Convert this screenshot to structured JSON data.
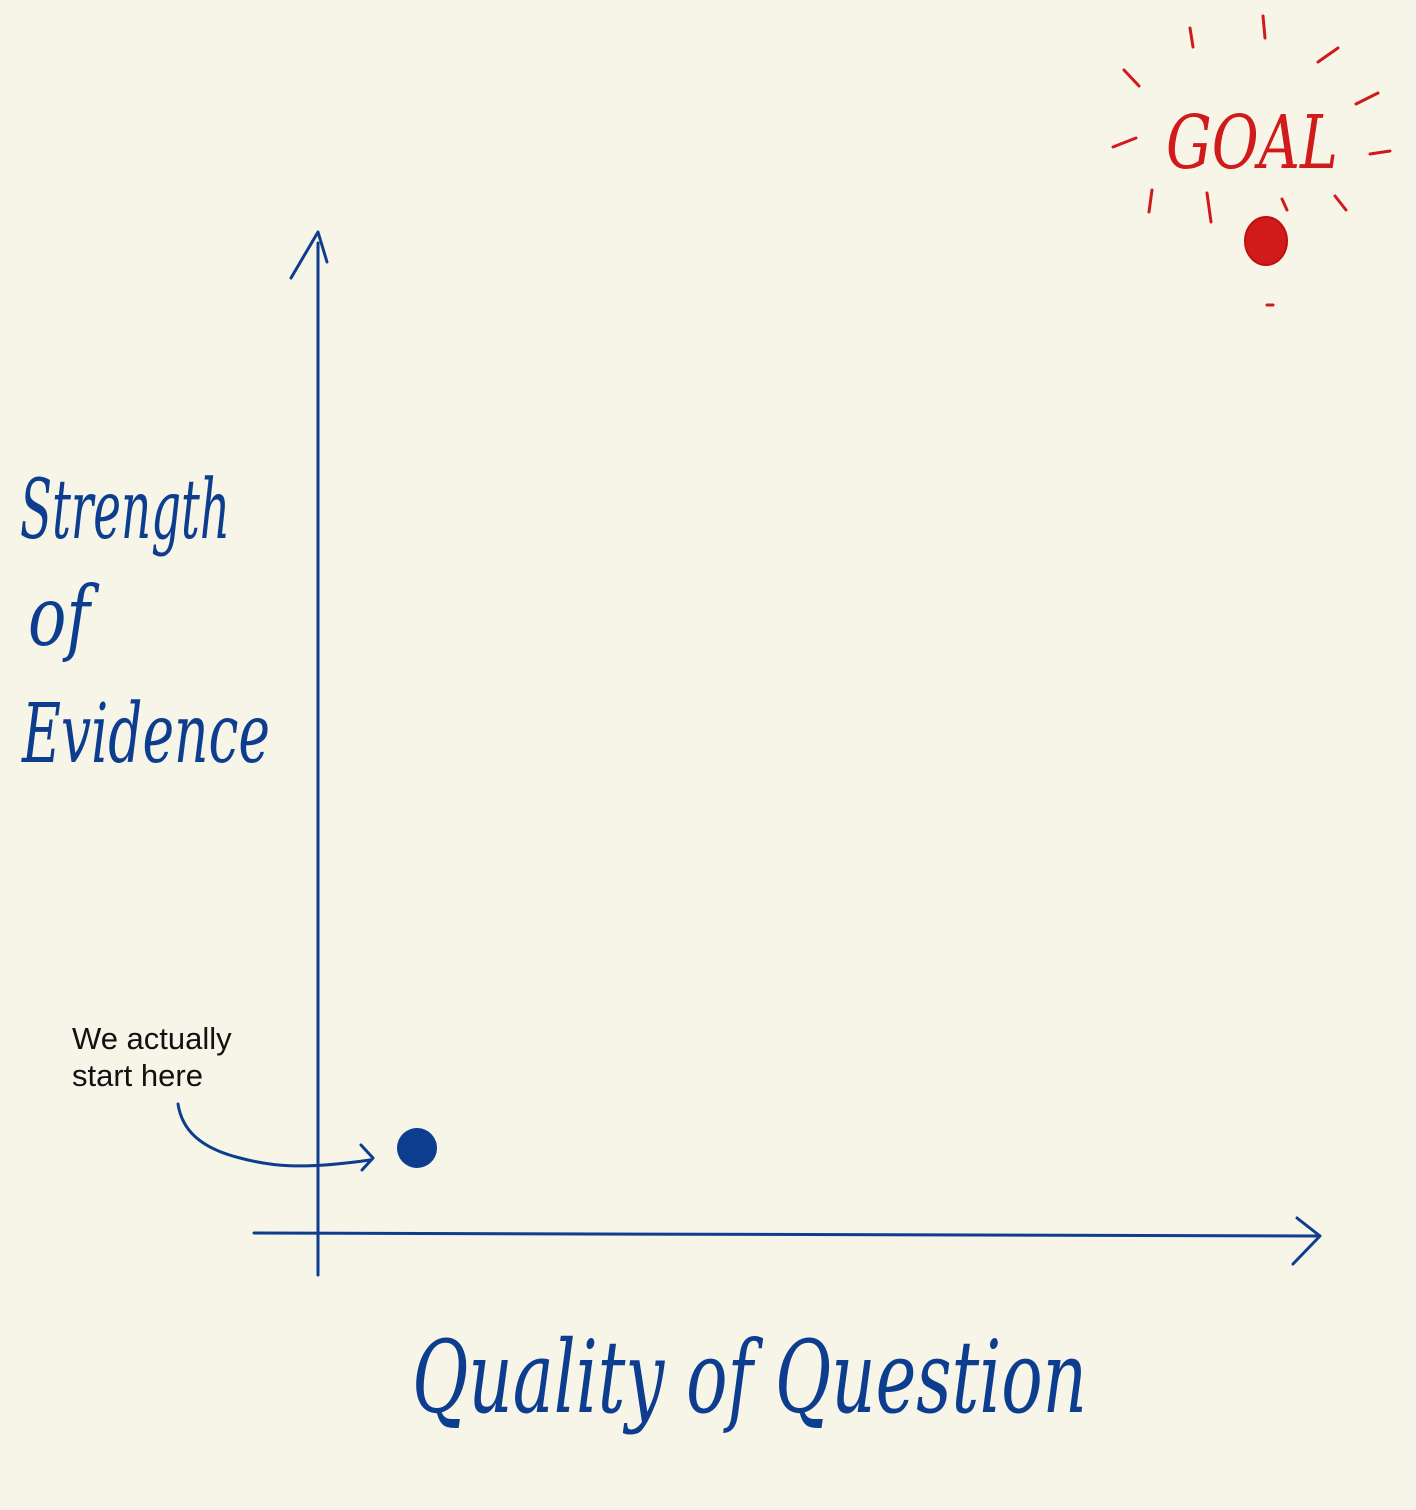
{
  "diagram": {
    "y_axis_label_lines": [
      "Strength",
      "of",
      "Evidence"
    ],
    "x_axis_label": "Quality of Question",
    "goal_label": "GOAL",
    "start_note_lines": [
      "We actually",
      "start here"
    ]
  },
  "colors": {
    "background": "#f7f4e8",
    "axis_ink": "#0d3d8f",
    "goal_ink": "#d11a1a",
    "note_text": "#111111"
  }
}
